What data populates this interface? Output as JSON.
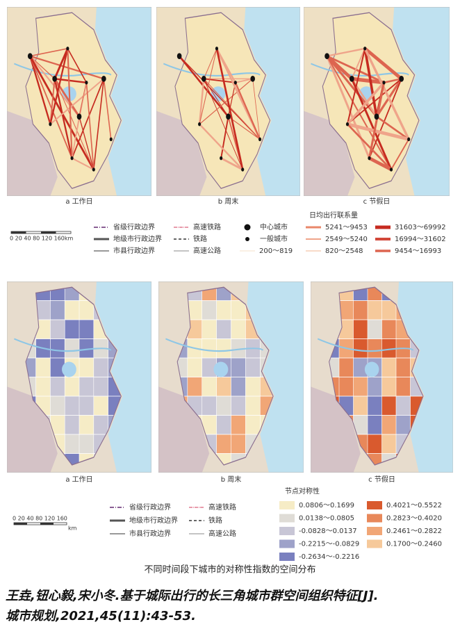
{
  "top_figure": {
    "panels": [
      "a 工作日",
      "b 周末",
      "c 节假日"
    ],
    "scale_bar": "0 20 40 80 120 160km",
    "boundaries": [
      "省级行政边界",
      "地级市行政边界",
      "市县行政边界"
    ],
    "transport": [
      "高速铁路",
      "铁路",
      "高速公路"
    ],
    "cities": [
      "中心城市",
      "一般城市"
    ],
    "flow_title": "日均出行联系量",
    "flow_classes": [
      {
        "label": "200～819",
        "color": "#f3d9b8"
      },
      {
        "label": "5241～9453",
        "color": "#e9876a"
      },
      {
        "label": "2549～5240",
        "color": "#efa48a"
      },
      {
        "label": "820～2548",
        "color": "#f5cdb6"
      },
      {
        "label": "31603～69992",
        "color": "#c62b20"
      },
      {
        "label": "16994～31602",
        "color": "#d2483a"
      },
      {
        "label": "9454～16993",
        "color": "#dd6550"
      }
    ]
  },
  "bottom_figure": {
    "panels": [
      "a 工作日",
      "b 周末",
      "c 节假日"
    ],
    "scale_bar": "0 20 40 80 120 160",
    "scale_unit": "km",
    "boundaries": [
      "省级行政边界",
      "地级市行政边界",
      "市县行政边界"
    ],
    "transport": [
      "高速铁路",
      "铁路",
      "高速公路"
    ],
    "symmetry_title": "节点对称性",
    "symmetry_classes": [
      {
        "label": "0.0806～0.1699",
        "color": "#f6ecc6"
      },
      {
        "label": "0.0138～0.0805",
        "color": "#dfdcd6"
      },
      {
        "label": "-0.0828～0.0137",
        "color": "#c8c6d6"
      },
      {
        "label": "-0.2215～-0.0829",
        "color": "#9ea2c9"
      },
      {
        "label": "-0.2634～-0.2216",
        "color": "#7a80bf"
      },
      {
        "label": "0.4021～0.5522",
        "color": "#d95a2e"
      },
      {
        "label": "0.2823～0.4020",
        "color": "#e8885a"
      },
      {
        "label": "0.2461～0.2822",
        "color": "#f1a676"
      },
      {
        "label": "0.1700～0.2460",
        "color": "#f6c99b"
      }
    ],
    "caption": "不同时间段下城市的对称性指数的空间分布"
  },
  "citation": {
    "line1": "王垚,钮心毅,宋小冬.基于城际出行的长三角城市群空间组织特征[J].",
    "line2": "城市规划,2021,45(11):43-53."
  }
}
